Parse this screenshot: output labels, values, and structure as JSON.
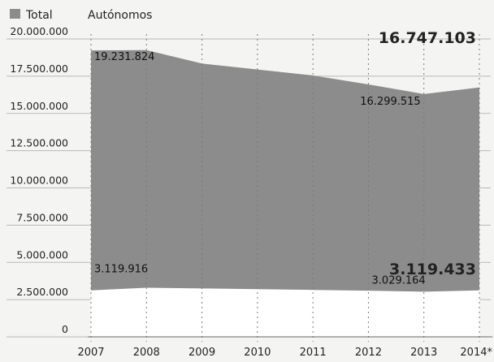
{
  "chart_data": {
    "type": "area",
    "legend": [
      {
        "name": "Total",
        "color": "#8c8c8c",
        "marker": "square"
      },
      {
        "name": "Autónomos",
        "color": "#ffffff",
        "marker": "none"
      }
    ],
    "legend_position": "top-left",
    "categories": [
      "2007",
      "2008",
      "2009",
      "2010",
      "2011",
      "2012",
      "2013",
      "2014*"
    ],
    "series": [
      {
        "name": "Total",
        "color": "#8c8c8c",
        "values": [
          19231824,
          19250000,
          18350000,
          17950000,
          17550000,
          16950000,
          16299515,
          16747103
        ]
      },
      {
        "name": "Autónomos",
        "color": "#ffffff",
        "values": [
          3119916,
          3300000,
          3250000,
          3200000,
          3150000,
          3100000,
          3029164,
          3119433
        ]
      }
    ],
    "y_ticks": [
      "20.000.000",
      "17.500.000",
      "15.000.000",
      "12.500.000",
      "10.000.000",
      "7.500.000",
      "5.000.000",
      "2.500.000",
      "0"
    ],
    "ylim": [
      0,
      20000000
    ],
    "grid": true,
    "annotations": [
      {
        "text": "19.231.824",
        "series": 0,
        "index": 0,
        "style": "normal"
      },
      {
        "text": "16.299.515",
        "series": 0,
        "index": 6,
        "style": "normal"
      },
      {
        "text": "16.747.103",
        "series": 0,
        "index": 7,
        "style": "bold"
      },
      {
        "text": "3.119.916",
        "series": 1,
        "index": 0,
        "style": "normal"
      },
      {
        "text": "3.029.164",
        "series": 1,
        "index": 6,
        "style": "normal"
      },
      {
        "text": "3.119.433",
        "series": 1,
        "index": 7,
        "style": "bold"
      }
    ]
  }
}
